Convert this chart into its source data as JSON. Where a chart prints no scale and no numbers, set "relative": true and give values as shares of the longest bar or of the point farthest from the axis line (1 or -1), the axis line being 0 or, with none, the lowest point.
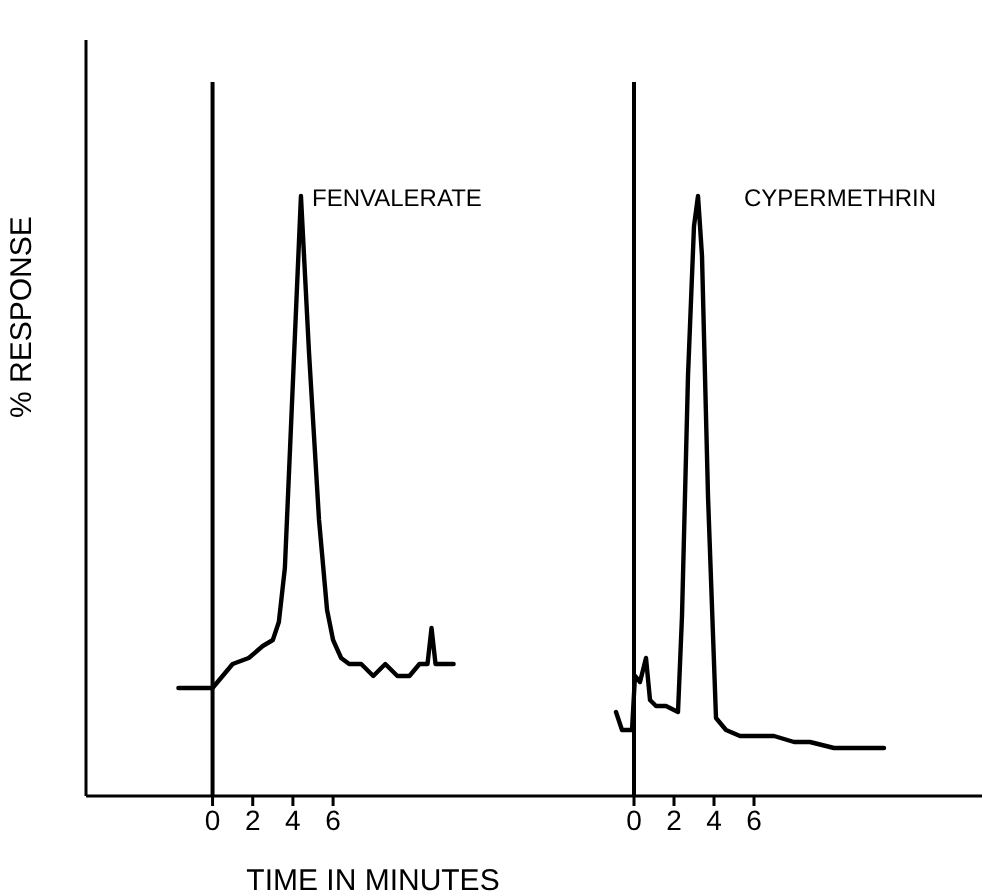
{
  "chart_data": [
    {
      "type": "line",
      "relative": true,
      "xlabel": "TIME IN MINUTES",
      "ylabel": "% RESPONSE",
      "annotations": [
        "FENVALERATE"
      ],
      "xlim": [
        -6.3,
        16.3
      ],
      "xticks": [
        0,
        2,
        4,
        6
      ],
      "tick_labels": "x",
      "ref_lines": [
        {
          "axis": "x",
          "value": 0,
          "color": "#000000"
        }
      ],
      "series": [
        {
          "color": "#000000",
          "x": [
            -1.7,
            -0.8,
            0,
            0.5,
            1,
            1.8,
            2.5,
            3,
            3.3,
            3.6,
            4.0,
            4.4,
            4.8,
            5.3,
            5.7,
            6,
            6.4,
            6.8,
            7.4,
            8,
            8.6,
            9.2,
            9.8,
            10.3,
            10.7,
            10.9,
            11.1,
            11.5,
            12
          ],
          "values": [
            0.18,
            0.18,
            0.18,
            0.2,
            0.22,
            0.23,
            0.25,
            0.26,
            0.29,
            0.38,
            0.69,
            1.0,
            0.74,
            0.46,
            0.31,
            0.26,
            0.23,
            0.22,
            0.22,
            0.2,
            0.22,
            0.2,
            0.2,
            0.22,
            0.22,
            0.28,
            0.22,
            0.22,
            0.22
          ]
        }
      ]
    },
    {
      "type": "line",
      "relative": true,
      "annotations": [
        "CYPERMETHRIN"
      ],
      "xlim": [
        -4.7,
        17.4
      ],
      "xticks": [
        0,
        2,
        4,
        6
      ],
      "tick_labels": "x",
      "ref_lines": [
        {
          "axis": "x",
          "value": 0,
          "color": "#000000"
        }
      ],
      "series": [
        {
          "color": "#000000",
          "x": [
            -0.9,
            -0.6,
            -0.1,
            0.05,
            0.3,
            0.45,
            0.6,
            0.8,
            1.1,
            1.6,
            2.2,
            2.4,
            2.7,
            3.0,
            3.2,
            3.4,
            3.7,
            4.1,
            4.6,
            5.3,
            6.2,
            7,
            8,
            8.8,
            10,
            11,
            12.5
          ],
          "values": [
            0.14,
            0.11,
            0.11,
            0.2,
            0.19,
            0.21,
            0.23,
            0.16,
            0.15,
            0.15,
            0.14,
            0.3,
            0.7,
            0.95,
            1.0,
            0.9,
            0.5,
            0.13,
            0.11,
            0.1,
            0.1,
            0.1,
            0.09,
            0.09,
            0.08,
            0.08,
            0.08
          ]
        }
      ]
    }
  ]
}
